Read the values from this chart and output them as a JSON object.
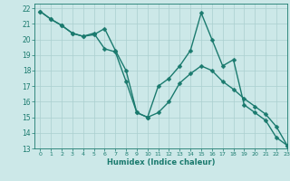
{
  "xlabel": "Humidex (Indice chaleur)",
  "ylabel": "",
  "xlim": [
    -0.5,
    23
  ],
  "ylim": [
    13,
    22.3
  ],
  "yticks": [
    13,
    14,
    15,
    16,
    17,
    18,
    19,
    20,
    21,
    22
  ],
  "xticks": [
    0,
    1,
    2,
    3,
    4,
    5,
    6,
    7,
    8,
    9,
    10,
    11,
    12,
    13,
    14,
    15,
    16,
    17,
    18,
    19,
    20,
    21,
    22,
    23
  ],
  "bg_color": "#cce8e8",
  "line_color": "#1a7a6e",
  "grid_color": "#aacfcf",
  "series1_x": [
    0,
    1,
    2,
    3,
    4,
    5,
    6,
    7,
    8,
    9,
    10,
    11,
    12,
    13,
    14,
    15,
    16,
    17,
    18,
    19,
    20,
    21,
    22,
    23
  ],
  "series1_y": [
    21.8,
    21.3,
    20.9,
    20.4,
    20.2,
    20.3,
    20.7,
    19.3,
    18.0,
    15.3,
    15.0,
    17.0,
    17.5,
    18.3,
    19.3,
    21.7,
    20.0,
    18.3,
    18.7,
    15.8,
    15.3,
    14.8,
    13.7,
    13.2
  ],
  "series2_x": [
    0,
    1,
    2,
    3,
    4,
    5,
    6,
    7,
    8,
    9,
    10,
    11,
    12,
    13,
    14,
    15,
    16,
    17,
    18,
    19,
    20,
    21,
    22,
    23
  ],
  "series2_y": [
    21.8,
    21.3,
    20.9,
    20.4,
    20.2,
    20.4,
    19.4,
    19.2,
    17.3,
    15.3,
    15.0,
    15.3,
    16.0,
    17.2,
    17.8,
    18.3,
    18.0,
    17.3,
    16.8,
    16.2,
    15.7,
    15.2,
    14.4,
    13.2
  ],
  "marker": "D",
  "markersize": 2.5,
  "linewidth": 1.0
}
